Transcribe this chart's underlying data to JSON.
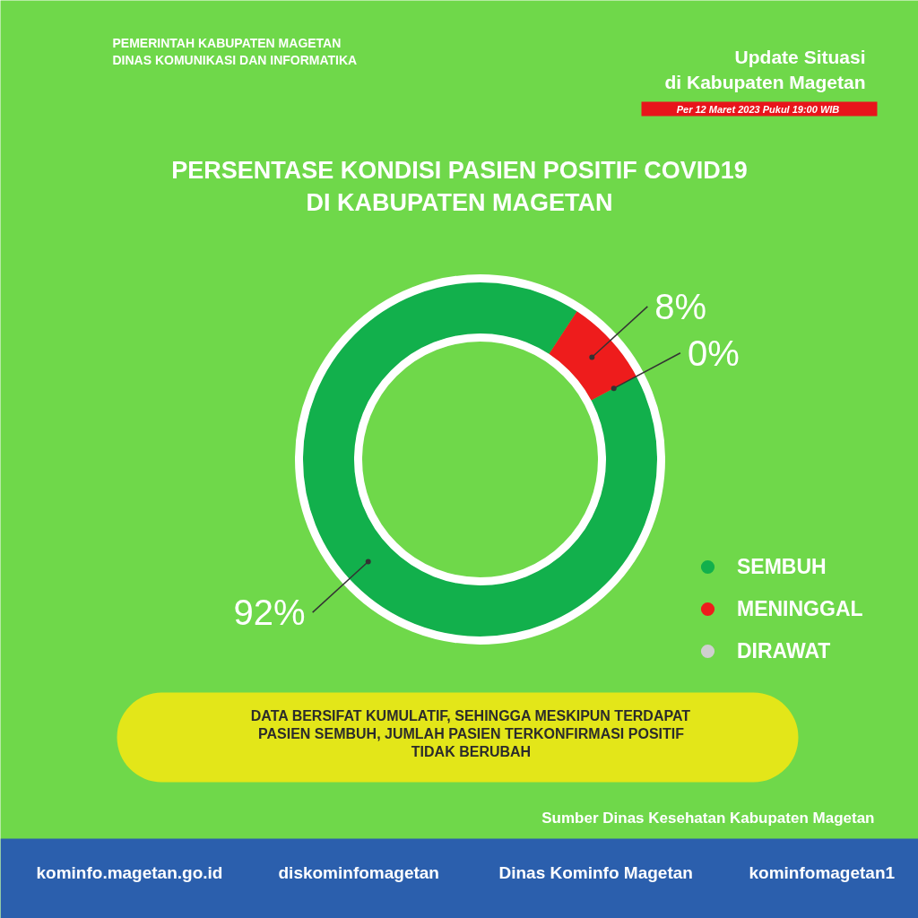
{
  "chart_data": {
    "type": "donut",
    "title": "PERSENTASE KONDISI PASIEN POSITIF COVID19\nDI KABUPATEN MAGETAN",
    "categories": [
      "SEMBUH",
      "MENINGGAL",
      "DIRAWAT"
    ],
    "values": [
      92,
      8,
      0
    ],
    "colors": [
      "#12b04c",
      "#ee1c1c",
      "#cfcfcf"
    ],
    "value_labels": [
      "92%",
      "8%",
      "0%"
    ],
    "legend": "bottom right",
    "annotations": [
      "PEMERINTAH KABUPATEN MAGETAN\nDINAS KOMUNIKASI DAN INFORMATIKA",
      "Update Situasi\ndi Kabupaten Magetan",
      "Per 12 Maret 2023 Pukul 19:00 WIB",
      "DATA BERSIFAT KUMULATIF, SEHINGGA MESKIPUN TERDAPAT\nPASIEN SEMBUH, JUMLAH PASIEN TERKONFIRMASI POSITIF\nTIDAK BERUBAH",
      "Sumber Dinas Kesehatan Kabupaten Magetan",
      "kominfo.magetan.go.id",
      "diskominfomagetan",
      "Dinas Kominfo Magetan",
      "kominfomagetan1"
    ]
  }
}
